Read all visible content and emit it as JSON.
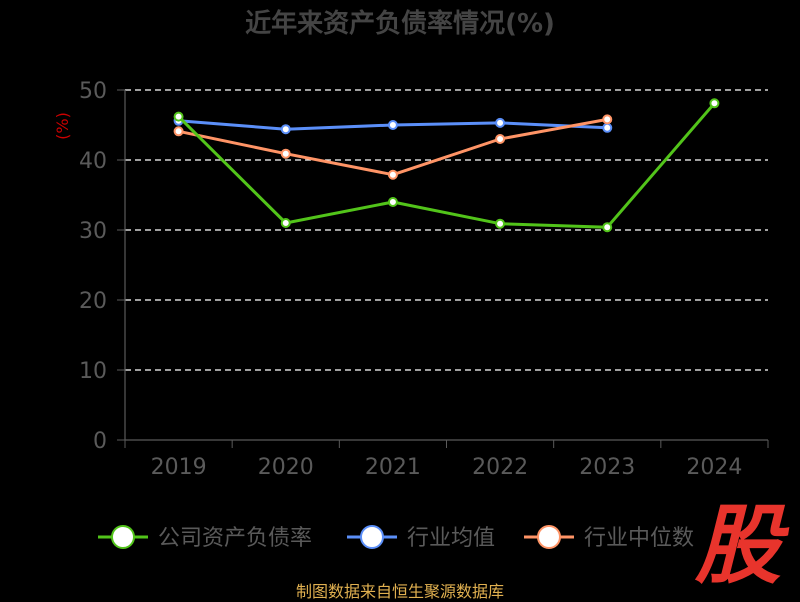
{
  "colors": {
    "background": "#000000",
    "title": "#444444",
    "axis_text": "#5a5a5a",
    "unit_label": "#cc0000",
    "grid": "#ffffff",
    "series_company": "#52c41a",
    "series_avg": "#5b8ff9",
    "series_median": "#ff9466",
    "source": "#e0b050",
    "watermark": "#e8342c"
  },
  "chart_data": {
    "type": "line",
    "title": "近年来资产负债率情况(%)",
    "ylabel": "(%)",
    "categories": [
      "2019",
      "2020",
      "2021",
      "2022",
      "2023",
      "2024"
    ],
    "ylim": [
      0,
      50
    ],
    "yticks": [
      "0",
      "10",
      "20",
      "30",
      "40",
      "50"
    ],
    "grid": true,
    "legend_position": "bottom",
    "series": [
      {
        "name": "公司资产负债率",
        "values": [
          46.2,
          31.0,
          34.0,
          30.9,
          30.4,
          48.1
        ]
      },
      {
        "name": "行业均值",
        "values": [
          45.6,
          44.4,
          45.0,
          45.3,
          44.6,
          null
        ]
      },
      {
        "name": "行业中位数",
        "values": [
          44.1,
          40.9,
          37.9,
          43.0,
          45.8,
          null
        ]
      }
    ]
  },
  "source": "制图数据来自恒生聚源数据库",
  "watermark_icon": "gu-stamp-logo",
  "watermark_text": "股"
}
